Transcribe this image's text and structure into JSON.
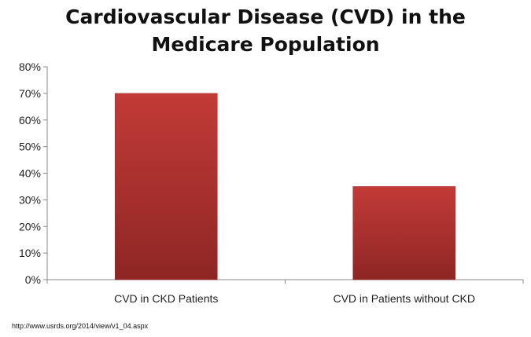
{
  "chart_data": {
    "type": "bar",
    "title_lines": [
      "Cardiovascular Disease (CVD) in the",
      "Medicare Population"
    ],
    "categories": [
      "CVD in CKD Patients",
      "CVD in Patients without CKD"
    ],
    "values": [
      70,
      35
    ],
    "ylim": [
      0,
      80
    ],
    "yticks": [
      0,
      10,
      20,
      30,
      40,
      50,
      60,
      70,
      80
    ],
    "ytick_suffix": "%",
    "xlabel": "",
    "ylabel": "",
    "grid": false,
    "legend": "none",
    "bar_color": "#c23b37",
    "bar_color_dark": "#8e2624"
  },
  "source_text": "http://www.usrds.org/2014/view/v1_04.aspx"
}
